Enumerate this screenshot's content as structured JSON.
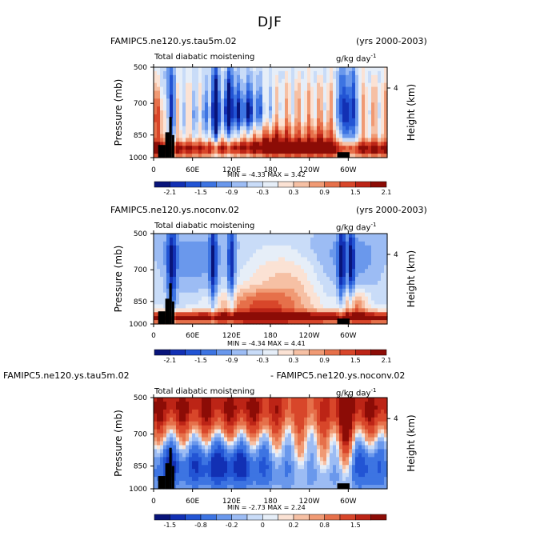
{
  "figure_title": "DJF",
  "chart_data": [
    {
      "type": "heatmap",
      "left_title": "FAMIPC5.ne120.ys.tau5m.02",
      "right_title": "(yrs 2000-2003)",
      "subtitle": "Total diabatic moistening",
      "units": "g/kg day",
      "units_exp": "-1",
      "min_label": "MIN =  -4.33  MAX =   3.42",
      "ylabel": "Pressure (mb)",
      "right_ylabel": "Height (km)",
      "x_ticks": [
        "0",
        "60E",
        "120E",
        "180",
        "120W",
        "60W"
      ],
      "y_ticks": [
        "500",
        "700",
        "850",
        "1000"
      ],
      "right_ticks": [
        "4"
      ],
      "colorbar_labels": [
        "-2.1",
        "-1.5",
        "-0.9",
        "-0.3",
        "0.3",
        "0.9",
        "1.5",
        "2.1"
      ],
      "colorbar_values": [
        -2.1,
        -1.8,
        -1.5,
        -1.2,
        -0.9,
        -0.6,
        -0.3,
        0,
        0.3,
        0.6,
        0.9,
        1.2,
        1.5,
        1.8,
        2.1
      ]
    },
    {
      "type": "heatmap",
      "left_title": "FAMIPC5.ne120.ys.noconv.02",
      "right_title": "(yrs 2000-2003)",
      "subtitle": "Total diabatic moistening",
      "units": "g/kg day",
      "units_exp": "-1",
      "min_label": "MIN =  -4.34  MAX =   4.41",
      "ylabel": "Pressure (mb)",
      "right_ylabel": "Height (km)",
      "x_ticks": [
        "0",
        "60E",
        "120E",
        "180",
        "120W",
        "60W"
      ],
      "y_ticks": [
        "500",
        "700",
        "850",
        "1000"
      ],
      "right_ticks": [
        "4"
      ],
      "colorbar_labels": [
        "-2.1",
        "-1.5",
        "-0.9",
        "-0.3",
        "0.3",
        "0.9",
        "1.5",
        "2.1"
      ],
      "colorbar_values": [
        -2.1,
        -1.8,
        -1.5,
        -1.2,
        -0.9,
        -0.6,
        -0.3,
        0,
        0.3,
        0.6,
        0.9,
        1.2,
        1.5,
        1.8,
        2.1
      ]
    },
    {
      "type": "heatmap",
      "left_title": "FAMIPC5.ne120.ys.tau5m.02",
      "right_title": "- FAMIPC5.ne120.ys.noconv.02",
      "subtitle": "Total diabatic moistening",
      "units": "g/kg day",
      "units_exp": "-1",
      "min_label": "MIN =  -2.73  MAX =   2.24",
      "ylabel": "Pressure (mb)",
      "right_ylabel": "Height (km)",
      "x_ticks": [
        "0",
        "60E",
        "120E",
        "180",
        "120W",
        "60W"
      ],
      "y_ticks": [
        "500",
        "700",
        "850",
        "1000"
      ],
      "right_ticks": [
        "4"
      ],
      "colorbar_labels": [
        "-1.5",
        "-0.8",
        "-0.2",
        "0",
        "0.2",
        "0.8",
        "1.5"
      ],
      "colorbar_values": [
        -2.0,
        -1.5,
        -1.2,
        -0.8,
        -0.5,
        -0.2,
        -0.1,
        0,
        0.1,
        0.2,
        0.5,
        0.8,
        1.2,
        1.5,
        2.0
      ]
    }
  ],
  "colors": {
    "palette": [
      "#08147a",
      "#1230b4",
      "#2254d4",
      "#3d74e2",
      "#6a98ec",
      "#9cbcf4",
      "#c9dcf8",
      "#e6eef8",
      "#fbe2d4",
      "#f6c0a4",
      "#f09a74",
      "#e6704a",
      "#d8462a",
      "#bc2416",
      "#8c0c06"
    ],
    "land": "#000000"
  }
}
